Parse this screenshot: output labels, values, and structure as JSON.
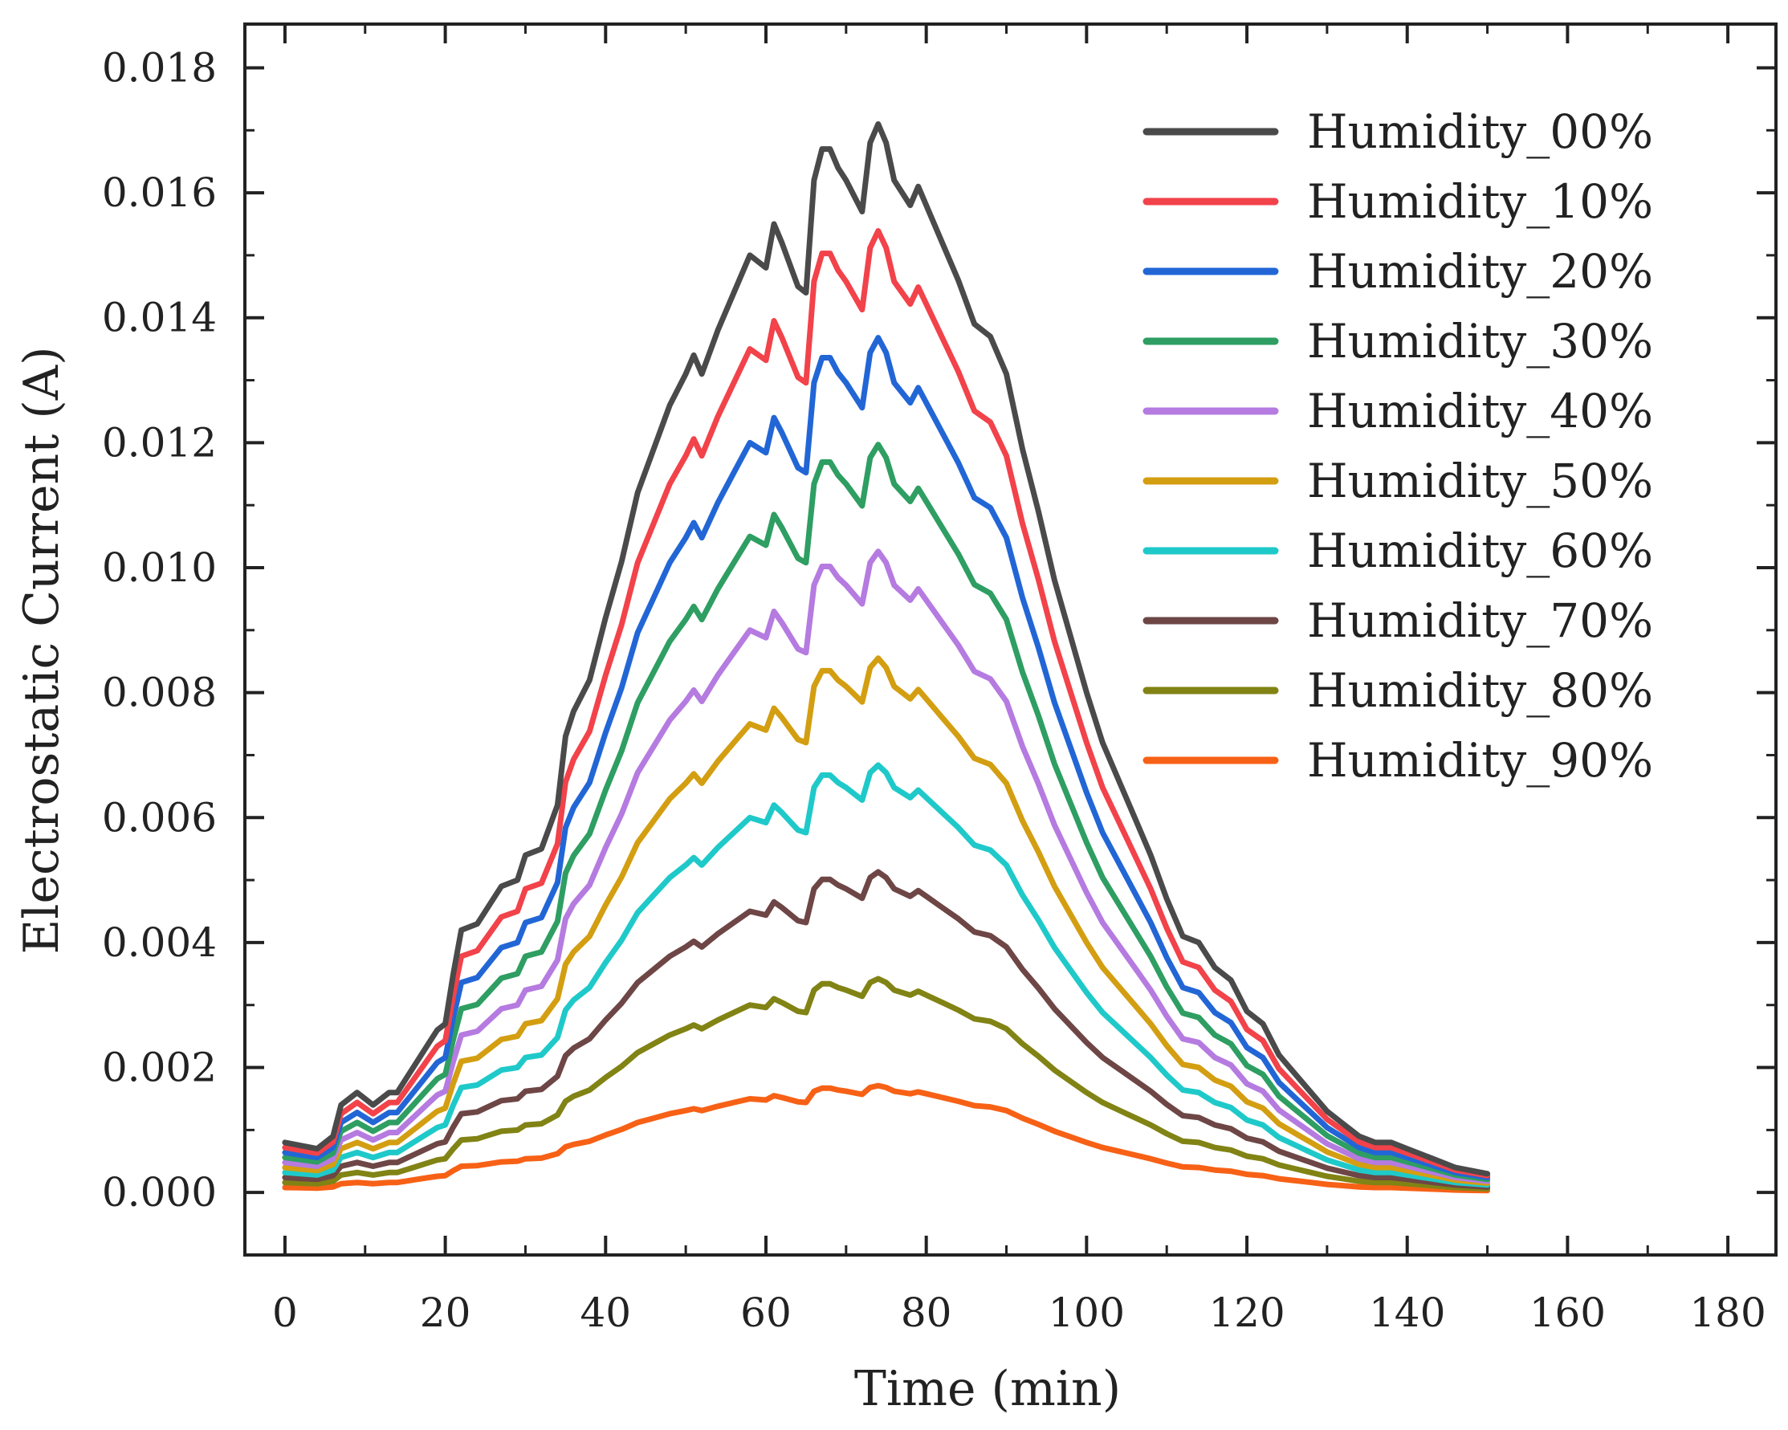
{
  "chart_data": {
    "type": "line",
    "title": "",
    "xlabel": "Time (min)",
    "ylabel": "Electrostatic Current (A)",
    "xlim": [
      -5,
      186
    ],
    "ylim": [
      -0.001,
      0.0187
    ],
    "xticks": [
      0,
      20,
      40,
      60,
      80,
      100,
      120,
      140,
      160,
      180
    ],
    "xtick_labels": [
      "0",
      "20",
      "40",
      "60",
      "80",
      "100",
      "120",
      "140",
      "160",
      "180"
    ],
    "yticks": [
      0.0,
      0.002,
      0.004,
      0.006,
      0.008,
      0.01,
      0.012,
      0.014,
      0.016,
      0.018
    ],
    "ytick_labels": [
      "0.000",
      "0.002",
      "0.004",
      "0.006",
      "0.008",
      "0.010",
      "0.012",
      "0.014",
      "0.016",
      "0.018"
    ],
    "grid": false,
    "legend_position": "top-right",
    "base_curve": {
      "note": "Humidity_00% curve (A); each other series is this curve multiplied by its scale",
      "x": [
        0,
        2,
        4,
        6,
        7,
        9,
        11,
        13,
        14,
        15,
        16,
        18,
        19,
        20,
        21,
        22,
        24,
        25,
        27,
        29,
        30,
        32,
        34,
        35,
        36,
        38,
        40,
        42,
        44,
        46,
        48,
        50,
        51,
        52,
        54,
        56,
        58,
        60,
        61,
        62,
        64,
        65,
        66,
        67,
        68,
        69,
        70,
        72,
        73,
        74,
        75,
        76,
        78,
        79,
        80,
        82,
        84,
        86,
        88,
        90,
        92,
        94,
        96,
        98,
        100,
        102,
        104,
        106,
        108,
        110,
        112,
        114,
        116,
        118,
        120,
        122,
        124,
        126,
        128,
        130,
        132,
        134,
        136,
        138,
        140,
        142,
        144,
        146,
        148,
        150
      ],
      "y": [
        0.0008,
        0.00075,
        0.0007,
        0.0009,
        0.0014,
        0.0016,
        0.0014,
        0.0016,
        0.0016,
        0.0018,
        0.002,
        0.0024,
        0.0026,
        0.0027,
        0.0035,
        0.0042,
        0.0043,
        0.0045,
        0.0049,
        0.005,
        0.0054,
        0.0055,
        0.0062,
        0.0073,
        0.0077,
        0.0082,
        0.0092,
        0.0101,
        0.0112,
        0.0119,
        0.0126,
        0.0131,
        0.0134,
        0.0131,
        0.0138,
        0.0144,
        0.015,
        0.0148,
        0.0155,
        0.0152,
        0.0145,
        0.0144,
        0.0162,
        0.0167,
        0.0167,
        0.0164,
        0.0162,
        0.0157,
        0.0168,
        0.0171,
        0.0168,
        0.0162,
        0.0158,
        0.0161,
        0.0158,
        0.0152,
        0.0146,
        0.0139,
        0.0137,
        0.0131,
        0.0119,
        0.0109,
        0.0098,
        0.0089,
        0.008,
        0.0072,
        0.0066,
        0.006,
        0.0054,
        0.0047,
        0.0041,
        0.004,
        0.0036,
        0.0034,
        0.0029,
        0.0027,
        0.0022,
        0.0019,
        0.0016,
        0.0013,
        0.0011,
        0.0009,
        0.0008,
        0.0008,
        0.0007,
        0.0006,
        0.0005,
        0.0004,
        0.00035,
        0.0003
      ]
    },
    "series": [
      {
        "name": "Humidity_00%",
        "color": "#4a4a4a",
        "scale": 1.0
      },
      {
        "name": "Humidity_10%",
        "color": "#f2424a",
        "scale": 0.9
      },
      {
        "name": "Humidity_20%",
        "color": "#2266d6",
        "scale": 0.8
      },
      {
        "name": "Humidity_30%",
        "color": "#2e9e62",
        "scale": 0.7
      },
      {
        "name": "Humidity_40%",
        "color": "#b57be0",
        "scale": 0.6
      },
      {
        "name": "Humidity_50%",
        "color": "#d39e11",
        "scale": 0.5
      },
      {
        "name": "Humidity_60%",
        "color": "#1fc9c9",
        "scale": 0.4
      },
      {
        "name": "Humidity_70%",
        "color": "#6e4646",
        "scale": 0.3
      },
      {
        "name": "Humidity_80%",
        "color": "#818314",
        "scale": 0.2
      },
      {
        "name": "Humidity_90%",
        "color": "#f76116",
        "scale": 0.1
      }
    ]
  }
}
